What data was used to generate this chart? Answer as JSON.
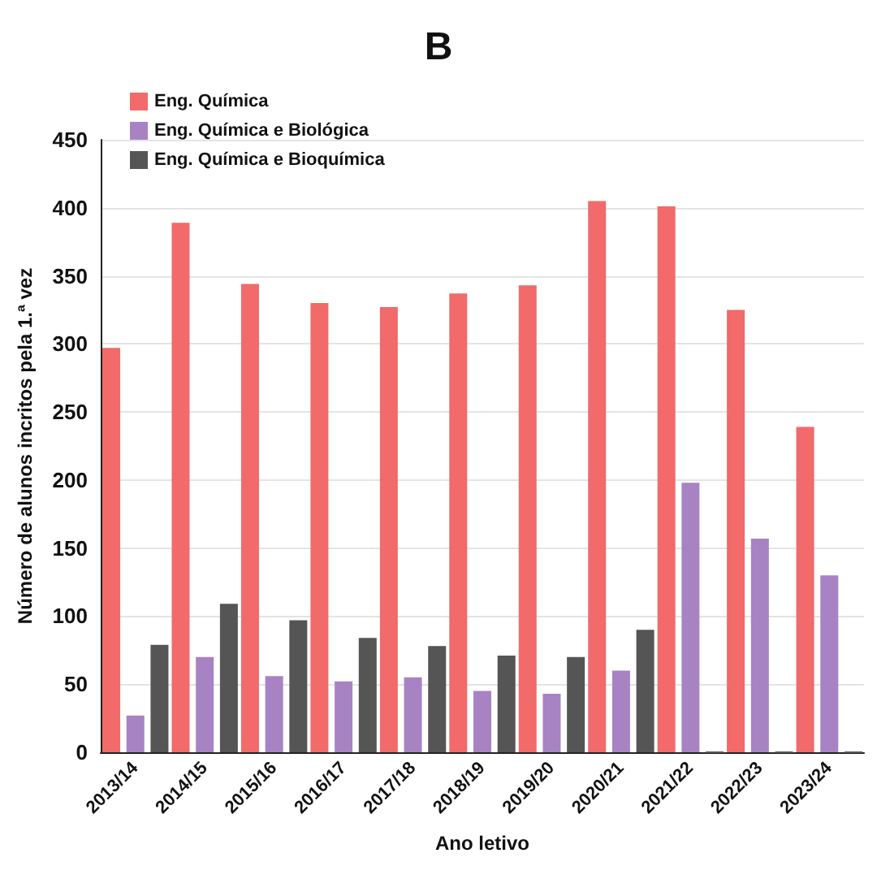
{
  "chart_data": {
    "type": "bar",
    "title": "B",
    "xlabel": "Ano letivo",
    "ylabel": "Número de alunos incritos pela 1.ª vez",
    "categories": [
      "2013/14",
      "2014/15",
      "2015/16",
      "2016/17",
      "2017/18",
      "2018/19",
      "2019/20",
      "2020/21",
      "2021/22",
      "2022/23",
      "2023/24"
    ],
    "series": [
      {
        "name": "Eng. Química",
        "color": "#f26a6a",
        "values": [
          297,
          389,
          344,
          330,
          327,
          337,
          343,
          405,
          401,
          325,
          239
        ]
      },
      {
        "name": "Eng. Química e Biológica",
        "color": "#a883c4",
        "values": [
          27,
          70,
          56,
          52,
          55,
          45,
          43,
          60,
          198,
          157,
          130
        ]
      },
      {
        "name": "Eng. Química e Bioquímica",
        "color": "#555555",
        "values": [
          79,
          109,
          97,
          84,
          78,
          71,
          70,
          90,
          0,
          0,
          0
        ]
      }
    ],
    "ylim": [
      0,
      450
    ],
    "yticks": [
      0,
      50,
      100,
      150,
      200,
      250,
      300,
      350,
      400,
      450
    ],
    "grid": "y",
    "legend": "top left"
  }
}
